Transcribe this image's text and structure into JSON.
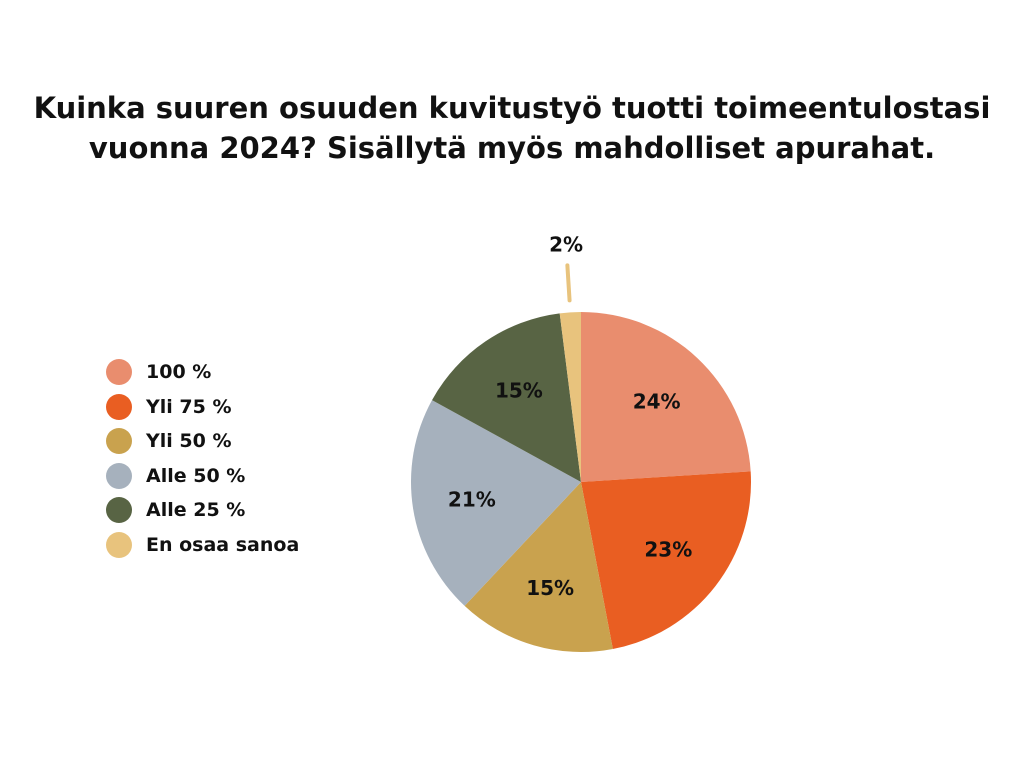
{
  "chart_data": {
    "type": "pie",
    "title_lines": [
      "Kuinka suuren osuuden kuvitustyö tuotti toimeentulostasi",
      "vuonna 2024? Sisällytä myös mahdolliset apurahat."
    ],
    "legend_position": "left",
    "slices": [
      {
        "label": "100 %",
        "value": 24,
        "display": "24%",
        "color": "#E98D6E"
      },
      {
        "label": "Yli 75 %",
        "value": 23,
        "display": "23%",
        "color": "#E95E22"
      },
      {
        "label": "Yli 50 %",
        "value": 15,
        "display": "15%",
        "color": "#C9A24E"
      },
      {
        "label": "Alle 50 %",
        "value": 21,
        "display": "21%",
        "color": "#A6B1BD"
      },
      {
        "label": "Alle 25 %",
        "value": 15,
        "display": "15%",
        "color": "#586444"
      },
      {
        "label": "En osaa sanoa",
        "value": 2,
        "display": "2%",
        "color": "#E8C37D"
      }
    ]
  }
}
